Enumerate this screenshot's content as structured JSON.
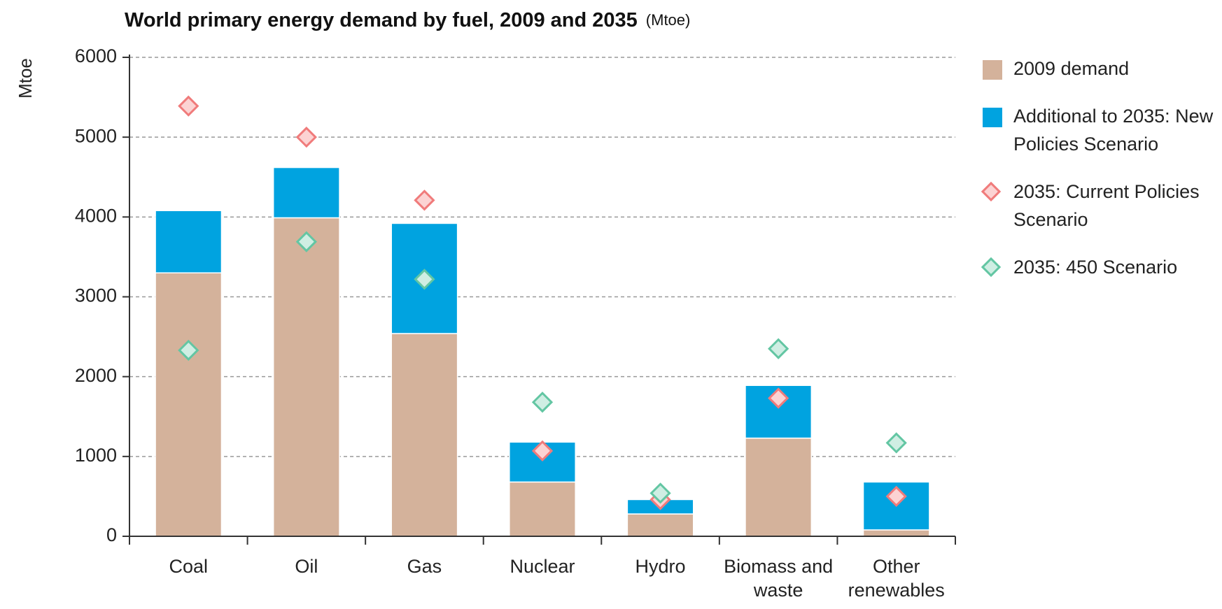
{
  "chart_data": {
    "type": "bar",
    "title": "World primary energy demand by fuel, 2009 and 2035",
    "subtitle": "(Mtoe)",
    "y_label": "Mtoe",
    "categories": [
      "Coal",
      "Oil",
      "Gas",
      "Nuclear",
      "Hydro",
      "Biomass and waste",
      "Other renewables"
    ],
    "series": [
      {
        "name": "2009 demand",
        "type": "bar",
        "color": "#d4b29b",
        "values": [
          3300,
          3990,
          2540,
          680,
          280,
          1230,
          80
        ]
      },
      {
        "name": "Additional to 2035: New Policies Scenario",
        "type": "bar",
        "color": "#00a3e0",
        "values": [
          780,
          630,
          1380,
          500,
          180,
          660,
          600
        ]
      },
      {
        "name": "2035: Current Policies Scenario",
        "type": "scatter",
        "color": "#f07b7b",
        "values": [
          5390,
          5000,
          4210,
          1070,
          460,
          1730,
          500
        ]
      },
      {
        "name": "2035: 450 Scenario",
        "type": "scatter",
        "color": "#63c6a3",
        "values": [
          2330,
          3690,
          3220,
          1680,
          540,
          2350,
          1170
        ]
      }
    ],
    "stacked": true,
    "ylim": [
      0,
      6000
    ],
    "yticks": [
      0,
      1000,
      2000,
      3000,
      4000,
      5000,
      6000
    ],
    "grid": true
  }
}
